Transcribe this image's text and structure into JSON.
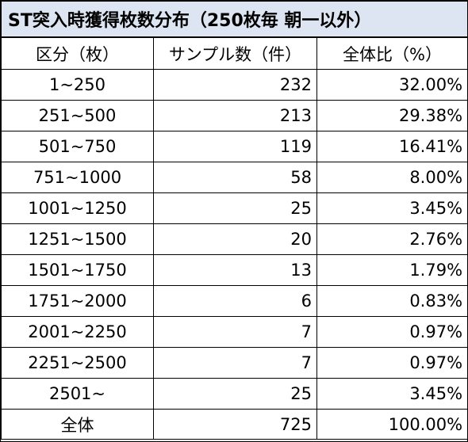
{
  "title": "ST突入時獲得枚数分布（250枚毎 朝一以外）",
  "headers": {
    "range": "区分（枚）",
    "samples": "サンプル数（件）",
    "ratio": "全体比（%）"
  },
  "rows": [
    {
      "range": "1~250",
      "samples": "232",
      "ratio": "32.00%"
    },
    {
      "range": "251~500",
      "samples": "213",
      "ratio": "29.38%"
    },
    {
      "range": "501~750",
      "samples": "119",
      "ratio": "16.41%"
    },
    {
      "range": "751~1000",
      "samples": "58",
      "ratio": "8.00%"
    },
    {
      "range": "1001~1250",
      "samples": "25",
      "ratio": "3.45%"
    },
    {
      "range": "1251~1500",
      "samples": "20",
      "ratio": "2.76%"
    },
    {
      "range": "1501~1750",
      "samples": "13",
      "ratio": "1.79%"
    },
    {
      "range": "1751~2000",
      "samples": "6",
      "ratio": "0.83%"
    },
    {
      "range": "2001~2250",
      "samples": "7",
      "ratio": "0.97%"
    },
    {
      "range": "2251~2500",
      "samples": "7",
      "ratio": "0.97%"
    },
    {
      "range": "2501~",
      "samples": "25",
      "ratio": "3.45%"
    }
  ],
  "total": {
    "range": "全体",
    "samples": "725",
    "ratio": "100.00%"
  },
  "colors": {
    "title_bg": "#dde5f2",
    "header_bg": "#ffffff",
    "border": "#000000"
  }
}
